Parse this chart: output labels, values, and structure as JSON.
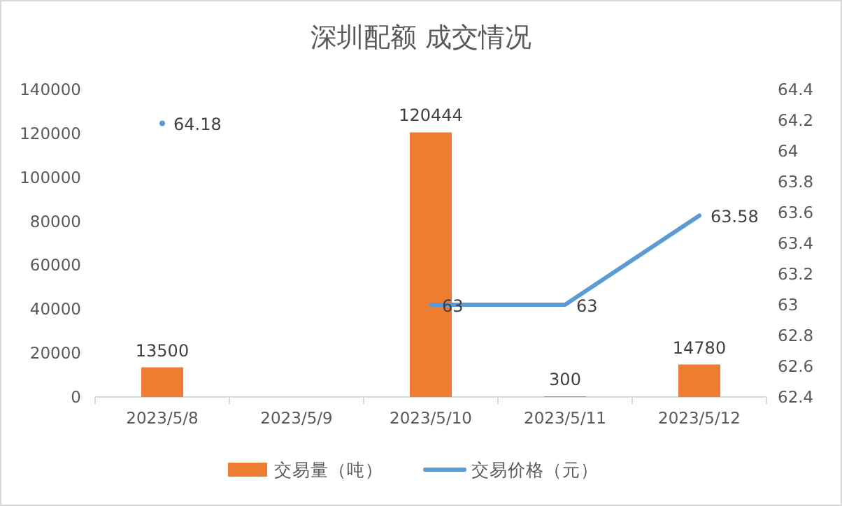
{
  "chart_data": {
    "type": "bar",
    "title": "深圳配额 成交情况",
    "categories": [
      "2023/5/8",
      "2023/5/9",
      "2023/5/10",
      "2023/5/11",
      "2023/5/12"
    ],
    "series": [
      {
        "name": "交易量（吨）",
        "color": "#ed7d31",
        "values": [
          13500,
          null,
          120444,
          300,
          14780
        ]
      },
      {
        "name": "交易价格（元）",
        "type": "line",
        "axis": "y2",
        "color": "#5b9bd5",
        "values": [
          64.18,
          null,
          63,
          63,
          63.58
        ]
      }
    ],
    "ylim": [
      0,
      140000
    ],
    "yticks": [
      0,
      20000,
      40000,
      60000,
      80000,
      100000,
      120000,
      140000
    ],
    "y2lim": [
      62.4,
      64.4
    ],
    "y2ticks": [
      62.4,
      62.6,
      62.8,
      63,
      63.2,
      63.4,
      63.6,
      63.8,
      64,
      64.2,
      64.4
    ],
    "data_labels": true,
    "legend": "bottom",
    "grid": false
  }
}
